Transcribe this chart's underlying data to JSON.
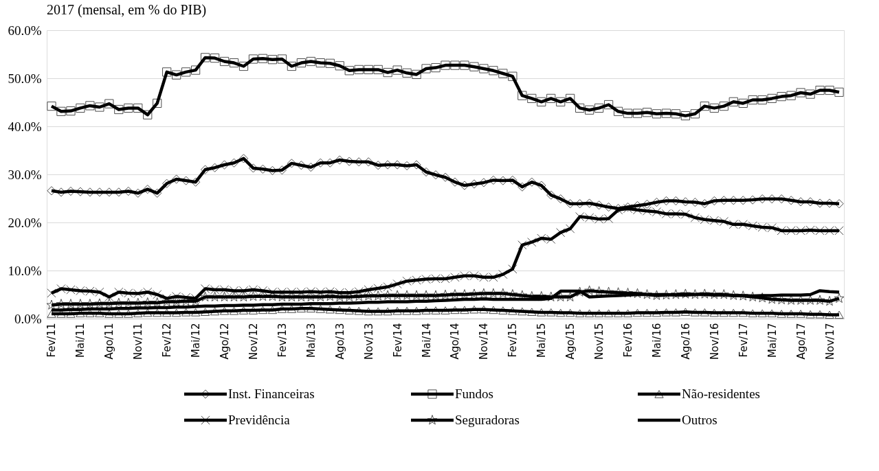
{
  "chart_data": {
    "type": "line",
    "title": "2017 (mensal, em % do PIB)",
    "categories": [
      "Fev/11",
      null,
      null,
      "Mai/11",
      null,
      null,
      "Ago/11",
      null,
      null,
      "Nov/11",
      null,
      null,
      "Fev/12",
      null,
      null,
      "Mai/12",
      null,
      null,
      "Ago/12",
      null,
      null,
      "Nov/12",
      null,
      null,
      "Fev/13",
      null,
      null,
      "Mai/13",
      null,
      null,
      "Ago/13",
      null,
      null,
      "Nov/13",
      null,
      null,
      "Fev/14",
      null,
      null,
      "Mai/14",
      null,
      null,
      "Ago/14",
      null,
      null,
      "Nov/14",
      null,
      null,
      "Fev/15",
      null,
      null,
      "Mai/15",
      null,
      null,
      "Ago/15",
      null,
      null,
      "Nov/15",
      null,
      null,
      "Fev/16",
      null,
      null,
      "Mai/16",
      null,
      null,
      "Ago/16",
      null,
      null,
      "Nov/16",
      null,
      null,
      "Fev/17",
      null,
      null,
      "Mai/17",
      null,
      null,
      "Ago/17",
      null,
      null,
      "Nov/17",
      null
    ],
    "ylim": [
      0,
      60
    ],
    "yticks": [
      {
        "value": 0,
        "label": "0.0%"
      },
      {
        "value": 10,
        "label": "10.0%"
      },
      {
        "value": 20,
        "label": "20.0%"
      },
      {
        "value": 30,
        "label": "30.0%"
      },
      {
        "value": 40,
        "label": "40.0%"
      },
      {
        "value": 50,
        "label": "50.0%"
      },
      {
        "value": 60,
        "label": "60.0%"
      }
    ],
    "grid": "y",
    "legend": "bottom",
    "line_style": "solid",
    "series": [
      {
        "name": "Inst. Financeiras",
        "color": "#000000",
        "marker": "diamond",
        "values": [
          26.6,
          26.3,
          26.5,
          26.4,
          26.3,
          26.3,
          26.3,
          26.3,
          26.5,
          26.1,
          26.9,
          26.1,
          28.1,
          29.0,
          28.7,
          28.4,
          31.0,
          31.4,
          32.0,
          32.4,
          33.3,
          31.3,
          31.1,
          30.8,
          30.9,
          32.3,
          31.9,
          31.5,
          32.4,
          32.4,
          33.0,
          32.7,
          32.6,
          32.6,
          31.9,
          32.0,
          32.0,
          31.8,
          32.0,
          30.5,
          29.9,
          29.4,
          28.4,
          27.7,
          28.0,
          28.3,
          28.8,
          28.7,
          28.8,
          27.4,
          28.4,
          27.7,
          25.7,
          24.9,
          23.9,
          23.9,
          24.0,
          23.6,
          23.2,
          22.9,
          23.2,
          23.5,
          23.8,
          24.2,
          24.5,
          24.5,
          24.3,
          24.2,
          23.9,
          24.5,
          24.6,
          24.6,
          24.6,
          24.7,
          24.9,
          24.9,
          24.9,
          24.6,
          24.3,
          24.3,
          24.0,
          24.0,
          23.9
        ]
      },
      {
        "name": "Fundos",
        "color": "#000000",
        "marker": "square",
        "values": [
          44.2,
          43.1,
          43.2,
          43.8,
          44.3,
          44.0,
          44.7,
          43.5,
          43.8,
          43.8,
          42.4,
          44.8,
          51.3,
          50.7,
          51.3,
          51.7,
          54.3,
          54.2,
          53.5,
          53.2,
          52.5,
          54.0,
          54.1,
          53.9,
          54.0,
          52.5,
          53.2,
          53.5,
          53.2,
          53.1,
          52.6,
          51.6,
          51.8,
          51.8,
          51.8,
          51.2,
          51.7,
          51.1,
          50.8,
          52.0,
          52.2,
          52.7,
          52.7,
          52.7,
          52.4,
          52.0,
          51.6,
          51.0,
          50.4,
          46.4,
          45.8,
          45.1,
          45.8,
          45.1,
          45.8,
          43.8,
          43.4,
          43.8,
          44.5,
          43.1,
          42.7,
          42.7,
          42.9,
          42.6,
          42.7,
          42.6,
          42.2,
          42.6,
          44.2,
          43.8,
          44.2,
          45.1,
          44.8,
          45.5,
          45.5,
          45.8,
          46.2,
          46.4,
          47.0,
          46.7,
          47.5,
          47.5,
          47.1
        ]
      },
      {
        "name": "Não-residentes",
        "color": "#000000",
        "marker": "triangle",
        "values": [
          1.0,
          1.0,
          1.0,
          1.1,
          1.1,
          1.1,
          1.0,
          1.0,
          1.0,
          1.1,
          1.2,
          1.2,
          1.2,
          1.2,
          1.3,
          1.3,
          1.4,
          1.5,
          1.6,
          1.6,
          1.7,
          1.7,
          1.8,
          1.8,
          2.0,
          2.0,
          2.1,
          2.1,
          2.0,
          1.9,
          1.8,
          1.7,
          1.6,
          1.5,
          1.5,
          1.5,
          1.6,
          1.6,
          1.6,
          1.7,
          1.7,
          1.7,
          1.8,
          1.8,
          1.9,
          1.9,
          1.8,
          1.7,
          1.6,
          1.5,
          1.4,
          1.3,
          1.3,
          1.2,
          1.2,
          1.1,
          1.1,
          1.1,
          1.1,
          1.1,
          1.1,
          1.2,
          1.2,
          1.2,
          1.3,
          1.3,
          1.4,
          1.3,
          1.3,
          1.2,
          1.2,
          1.2,
          1.2,
          1.1,
          1.1,
          1.1,
          1.0,
          1.0,
          1.0,
          0.9,
          0.9,
          0.8,
          0.8
        ]
      },
      {
        "name": "Previdência",
        "color": "#000000",
        "marker": "cross",
        "values": [
          5.3,
          6.2,
          6.0,
          5.8,
          5.7,
          5.5,
          4.5,
          5.5,
          5.3,
          5.2,
          5.5,
          5.0,
          4.2,
          4.6,
          4.4,
          4.2,
          6.2,
          6.0,
          6.0,
          5.8,
          5.8,
          6.0,
          5.8,
          5.5,
          5.5,
          5.5,
          5.5,
          5.6,
          5.5,
          5.6,
          5.4,
          5.4,
          5.6,
          6.0,
          6.3,
          6.6,
          7.2,
          7.8,
          8.0,
          8.2,
          8.3,
          8.3,
          8.6,
          8.9,
          8.9,
          8.6,
          8.6,
          9.2,
          10.3,
          15.3,
          15.9,
          16.7,
          16.5,
          17.9,
          18.7,
          21.2,
          21.0,
          20.7,
          20.8,
          22.6,
          22.9,
          22.6,
          22.4,
          22.2,
          21.8,
          21.8,
          21.7,
          21.0,
          20.6,
          20.4,
          20.2,
          19.6,
          19.6,
          19.3,
          19.0,
          18.9,
          18.3,
          18.3,
          18.3,
          18.4,
          18.3,
          18.3,
          18.3
        ]
      },
      {
        "name": "Seguradoras",
        "color": "#000000",
        "marker": "star",
        "values": [
          2.8,
          3.0,
          3.0,
          3.0,
          3.0,
          3.1,
          3.1,
          3.2,
          3.2,
          3.2,
          3.3,
          3.3,
          3.5,
          3.5,
          3.6,
          3.6,
          4.5,
          4.5,
          4.5,
          4.5,
          4.5,
          4.6,
          4.6,
          4.6,
          4.5,
          4.5,
          4.5,
          4.5,
          4.5,
          4.6,
          4.5,
          4.5,
          4.6,
          4.7,
          4.7,
          4.8,
          4.8,
          4.8,
          4.8,
          4.8,
          4.8,
          4.9,
          5.0,
          5.0,
          5.1,
          5.2,
          5.2,
          5.2,
          5.0,
          4.8,
          4.6,
          4.6,
          4.5,
          4.5,
          4.5,
          5.5,
          5.8,
          5.6,
          5.5,
          5.4,
          5.3,
          5.2,
          5.0,
          4.8,
          4.9,
          5.0,
          5.1,
          5.0,
          5.1,
          5.0,
          5.0,
          4.8,
          4.7,
          4.5,
          4.3,
          4.0,
          3.9,
          3.8,
          3.8,
          3.8,
          3.8,
          3.6,
          4.2
        ]
      },
      {
        "name": "Outros",
        "color": "#000000",
        "marker": "none",
        "values": [
          1.8,
          1.8,
          1.9,
          1.9,
          2.0,
          2.0,
          2.0,
          2.1,
          2.1,
          2.2,
          2.2,
          2.3,
          2.3,
          2.4,
          2.4,
          2.5,
          2.6,
          2.6,
          2.7,
          2.7,
          2.8,
          2.8,
          2.9,
          2.9,
          3.0,
          3.0,
          3.0,
          3.1,
          3.1,
          3.1,
          3.2,
          3.2,
          3.3,
          3.4,
          3.4,
          3.5,
          3.5,
          3.5,
          3.6,
          3.6,
          3.7,
          3.8,
          3.9,
          4.0,
          4.0,
          4.1,
          4.0,
          4.0,
          4.0,
          4.0,
          4.0,
          4.0,
          4.2,
          5.7,
          5.7,
          5.7,
          4.5,
          4.6,
          4.7,
          4.8,
          4.9,
          5.0,
          5.0,
          5.0,
          5.0,
          4.9,
          4.9,
          5.0,
          5.0,
          4.9,
          4.9,
          4.8,
          4.8,
          4.7,
          4.8,
          4.8,
          4.9,
          4.9,
          4.9,
          5.0,
          5.8,
          5.6,
          5.5
        ]
      }
    ]
  }
}
